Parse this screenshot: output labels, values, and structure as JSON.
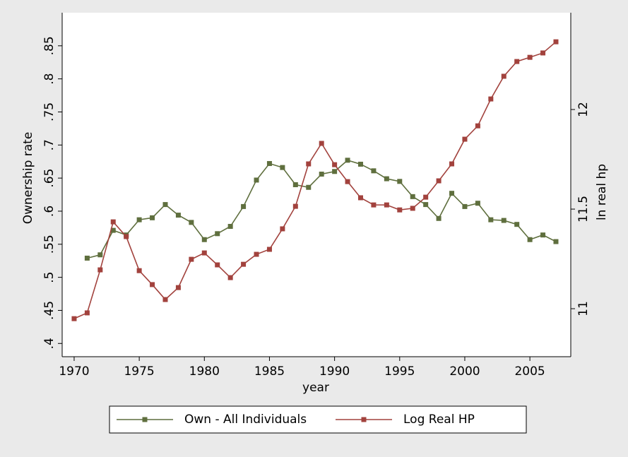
{
  "chart_data": {
    "type": "line",
    "x": [
      1970,
      1971,
      1972,
      1973,
      1974,
      1975,
      1976,
      1977,
      1978,
      1979,
      1980,
      1981,
      1982,
      1983,
      1984,
      1985,
      1986,
      1987,
      1988,
      1989,
      1990,
      1991,
      1992,
      1993,
      1994,
      1995,
      1996,
      1997,
      1998,
      1999,
      2000,
      2001,
      2002,
      2003,
      2004,
      2005,
      2006,
      2007
    ],
    "series": [
      {
        "name": "Own - All Individuals",
        "color": "#5f6f3e",
        "axis": "y",
        "values": [
          null,
          0.529,
          0.534,
          0.571,
          0.564,
          0.587,
          0.59,
          0.61,
          0.594,
          0.583,
          0.557,
          0.566,
          0.577,
          0.607,
          0.647,
          0.672,
          0.666,
          0.64,
          0.636,
          0.656,
          0.66,
          0.677,
          0.671,
          0.661,
          0.649,
          0.645,
          0.622,
          0.61,
          0.589,
          0.627,
          0.607,
          0.612,
          0.587,
          0.586,
          0.58,
          0.557,
          0.564,
          0.554
        ]
      },
      {
        "name": "Log Real HP",
        "color": "#a2423d",
        "axis": "y2",
        "values": [
          10.95,
          10.979,
          11.195,
          11.436,
          11.362,
          11.191,
          11.121,
          11.046,
          11.106,
          11.248,
          11.28,
          11.22,
          11.156,
          11.223,
          11.273,
          11.298,
          11.401,
          11.514,
          11.727,
          11.83,
          11.723,
          11.638,
          11.557,
          11.521,
          11.521,
          11.496,
          11.504,
          11.56,
          11.642,
          11.727,
          11.851,
          11.918,
          12.053,
          12.167,
          12.241,
          12.262,
          12.284,
          12.34
        ]
      }
    ],
    "xlabel": "year",
    "ylabel": "Ownership rate",
    "y2label": "ln real hp",
    "xlim": [
      1969.08,
      2008.14
    ],
    "xticks": [
      1970,
      1975,
      1980,
      1985,
      1990,
      1995,
      2000,
      2005
    ],
    "ylim": [
      0.38,
      0.9
    ],
    "yticks": [
      {
        "value": 0.4,
        "label": ".4"
      },
      {
        "value": 0.45,
        "label": ".45"
      },
      {
        "value": 0.5,
        "label": ".5"
      },
      {
        "value": 0.55,
        "label": ".55"
      },
      {
        "value": 0.6,
        "label": ".6"
      },
      {
        "value": 0.65,
        "label": ".65"
      },
      {
        "value": 0.7,
        "label": ".7"
      },
      {
        "value": 0.75,
        "label": ".75"
      },
      {
        "value": 0.8,
        "label": ".8"
      },
      {
        "value": 0.85,
        "label": ".85"
      }
    ],
    "y2lim": [
      10.759,
      12.486
    ],
    "y2ticks": [
      11,
      11.5,
      12
    ],
    "legend": "bottom"
  }
}
